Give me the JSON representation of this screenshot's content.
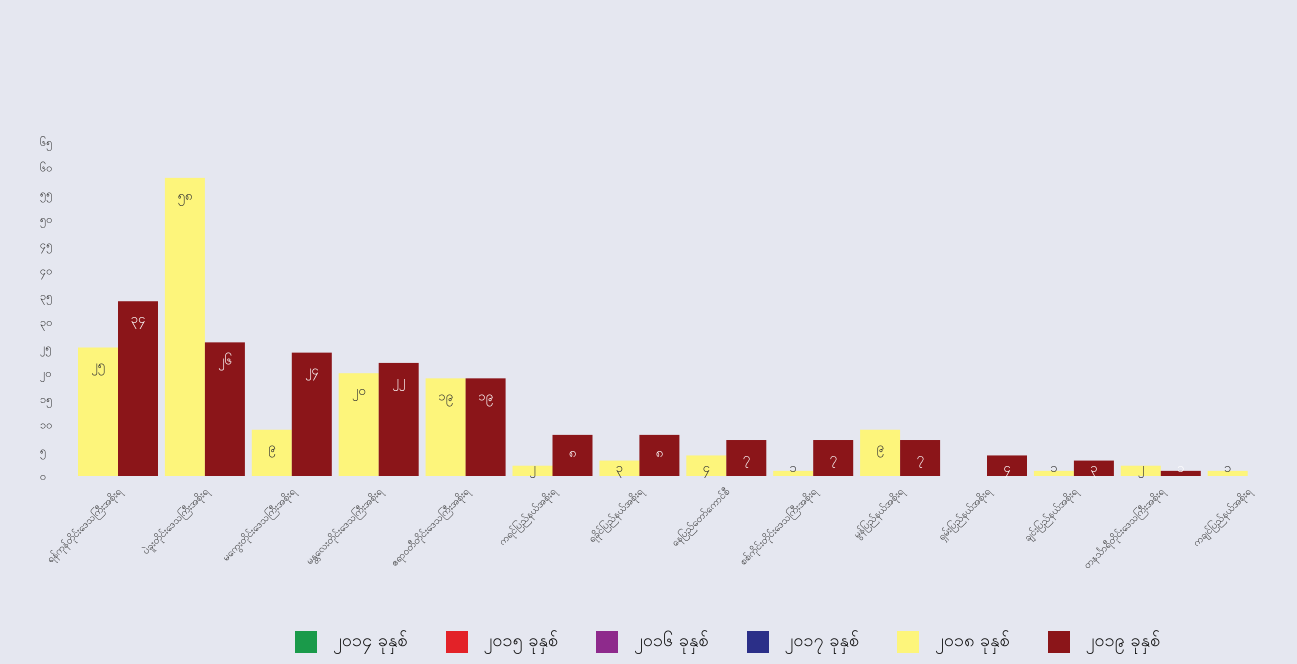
{
  "chart_data": {
    "type": "bar",
    "title": "",
    "xlabel": "",
    "ylabel": "",
    "ylim": [
      0,
      65
    ],
    "y_ticks": [
      "၀",
      "၅",
      "၁၀",
      "၁၅",
      "၂၀",
      "၂၅",
      "၃၀",
      "၃၅",
      "၄၀",
      "၄၅",
      "၅၀",
      "၅၅",
      "၆၀",
      "၆၅"
    ],
    "categories": [
      "ရန်ကုန်တိုင်းဒေသကြီးအစိုးရ",
      "ပဲခူးတိုင်းဒေသကြီးအစိုးရ",
      "မကွေးတိုင်းဒေသကြီးအစိုးရ",
      "မန္တလေးတိုင်းဒေသကြီးအစိုးရ",
      "ဧရာဝတီတိုင်းဒေသကြီးအစိုးရ",
      "ကရင်ပြည်နယ်အစိုးရ",
      "ရခိုင်ပြည်နယ်အစိုးရ",
      "နေပြည်တော်ကောင်စီ",
      "စစ်ကိုင်းတိုင်းဒေသကြီးအစိုးရ",
      "မွန်ပြည်နယ်အစိုးရ",
      "ရှမ်းပြည်နယ်အစိုးရ",
      "ချင်းပြည်နယ်အစိုးရ",
      "တနင်္သာရီတိုင်းဒေသကြီးအစိုးရ",
      "ကချင်ပြည်နယ်အစိုးရ"
    ],
    "series": [
      {
        "name": "၂၀၁၈ ခုနှစ်",
        "color": "#fdf57b",
        "values": [
          25,
          58,
          9,
          20,
          19,
          2,
          3,
          4,
          1,
          9,
          0,
          1,
          2,
          1
        ],
        "labels": [
          "၂၅",
          "၅၈",
          "၉",
          "၂၀",
          "၁၉",
          "၂",
          "၃",
          "၄",
          "၁",
          "၉",
          "",
          "၁",
          "၂",
          "၁"
        ]
      },
      {
        "name": "၂၀၁၉ ခုနှစ်",
        "color": "#8b1519",
        "values": [
          34,
          26,
          24,
          22,
          19,
          8,
          8,
          7,
          7,
          7,
          4,
          3,
          1,
          0
        ],
        "labels": [
          "၃၄",
          "၂၆",
          "၂၄",
          "၂၂",
          "၁၉",
          "၈",
          "၈",
          "၇",
          "၇",
          "၇",
          "၄",
          "၃",
          "၁",
          ""
        ]
      }
    ],
    "legend": [
      {
        "name": "၂၀၁၄ ခုနှစ်",
        "color": "#1a9a4a"
      },
      {
        "name": "၂၀၁၅ ခုနှစ်",
        "color": "#e32228"
      },
      {
        "name": "၂၀၁၆ ခုနှစ်",
        "color": "#8e2a8c"
      },
      {
        "name": "၂၀၁၇ ခုနှစ်",
        "color": "#2b2f88"
      },
      {
        "name": "၂၀၁၈ ခုနှစ်",
        "color": "#fdf57b"
      },
      {
        "name": "၂၀၁၉ ခုနှစ်",
        "color": "#8b1519"
      }
    ],
    "legend_position": "bottom",
    "grid": false
  }
}
